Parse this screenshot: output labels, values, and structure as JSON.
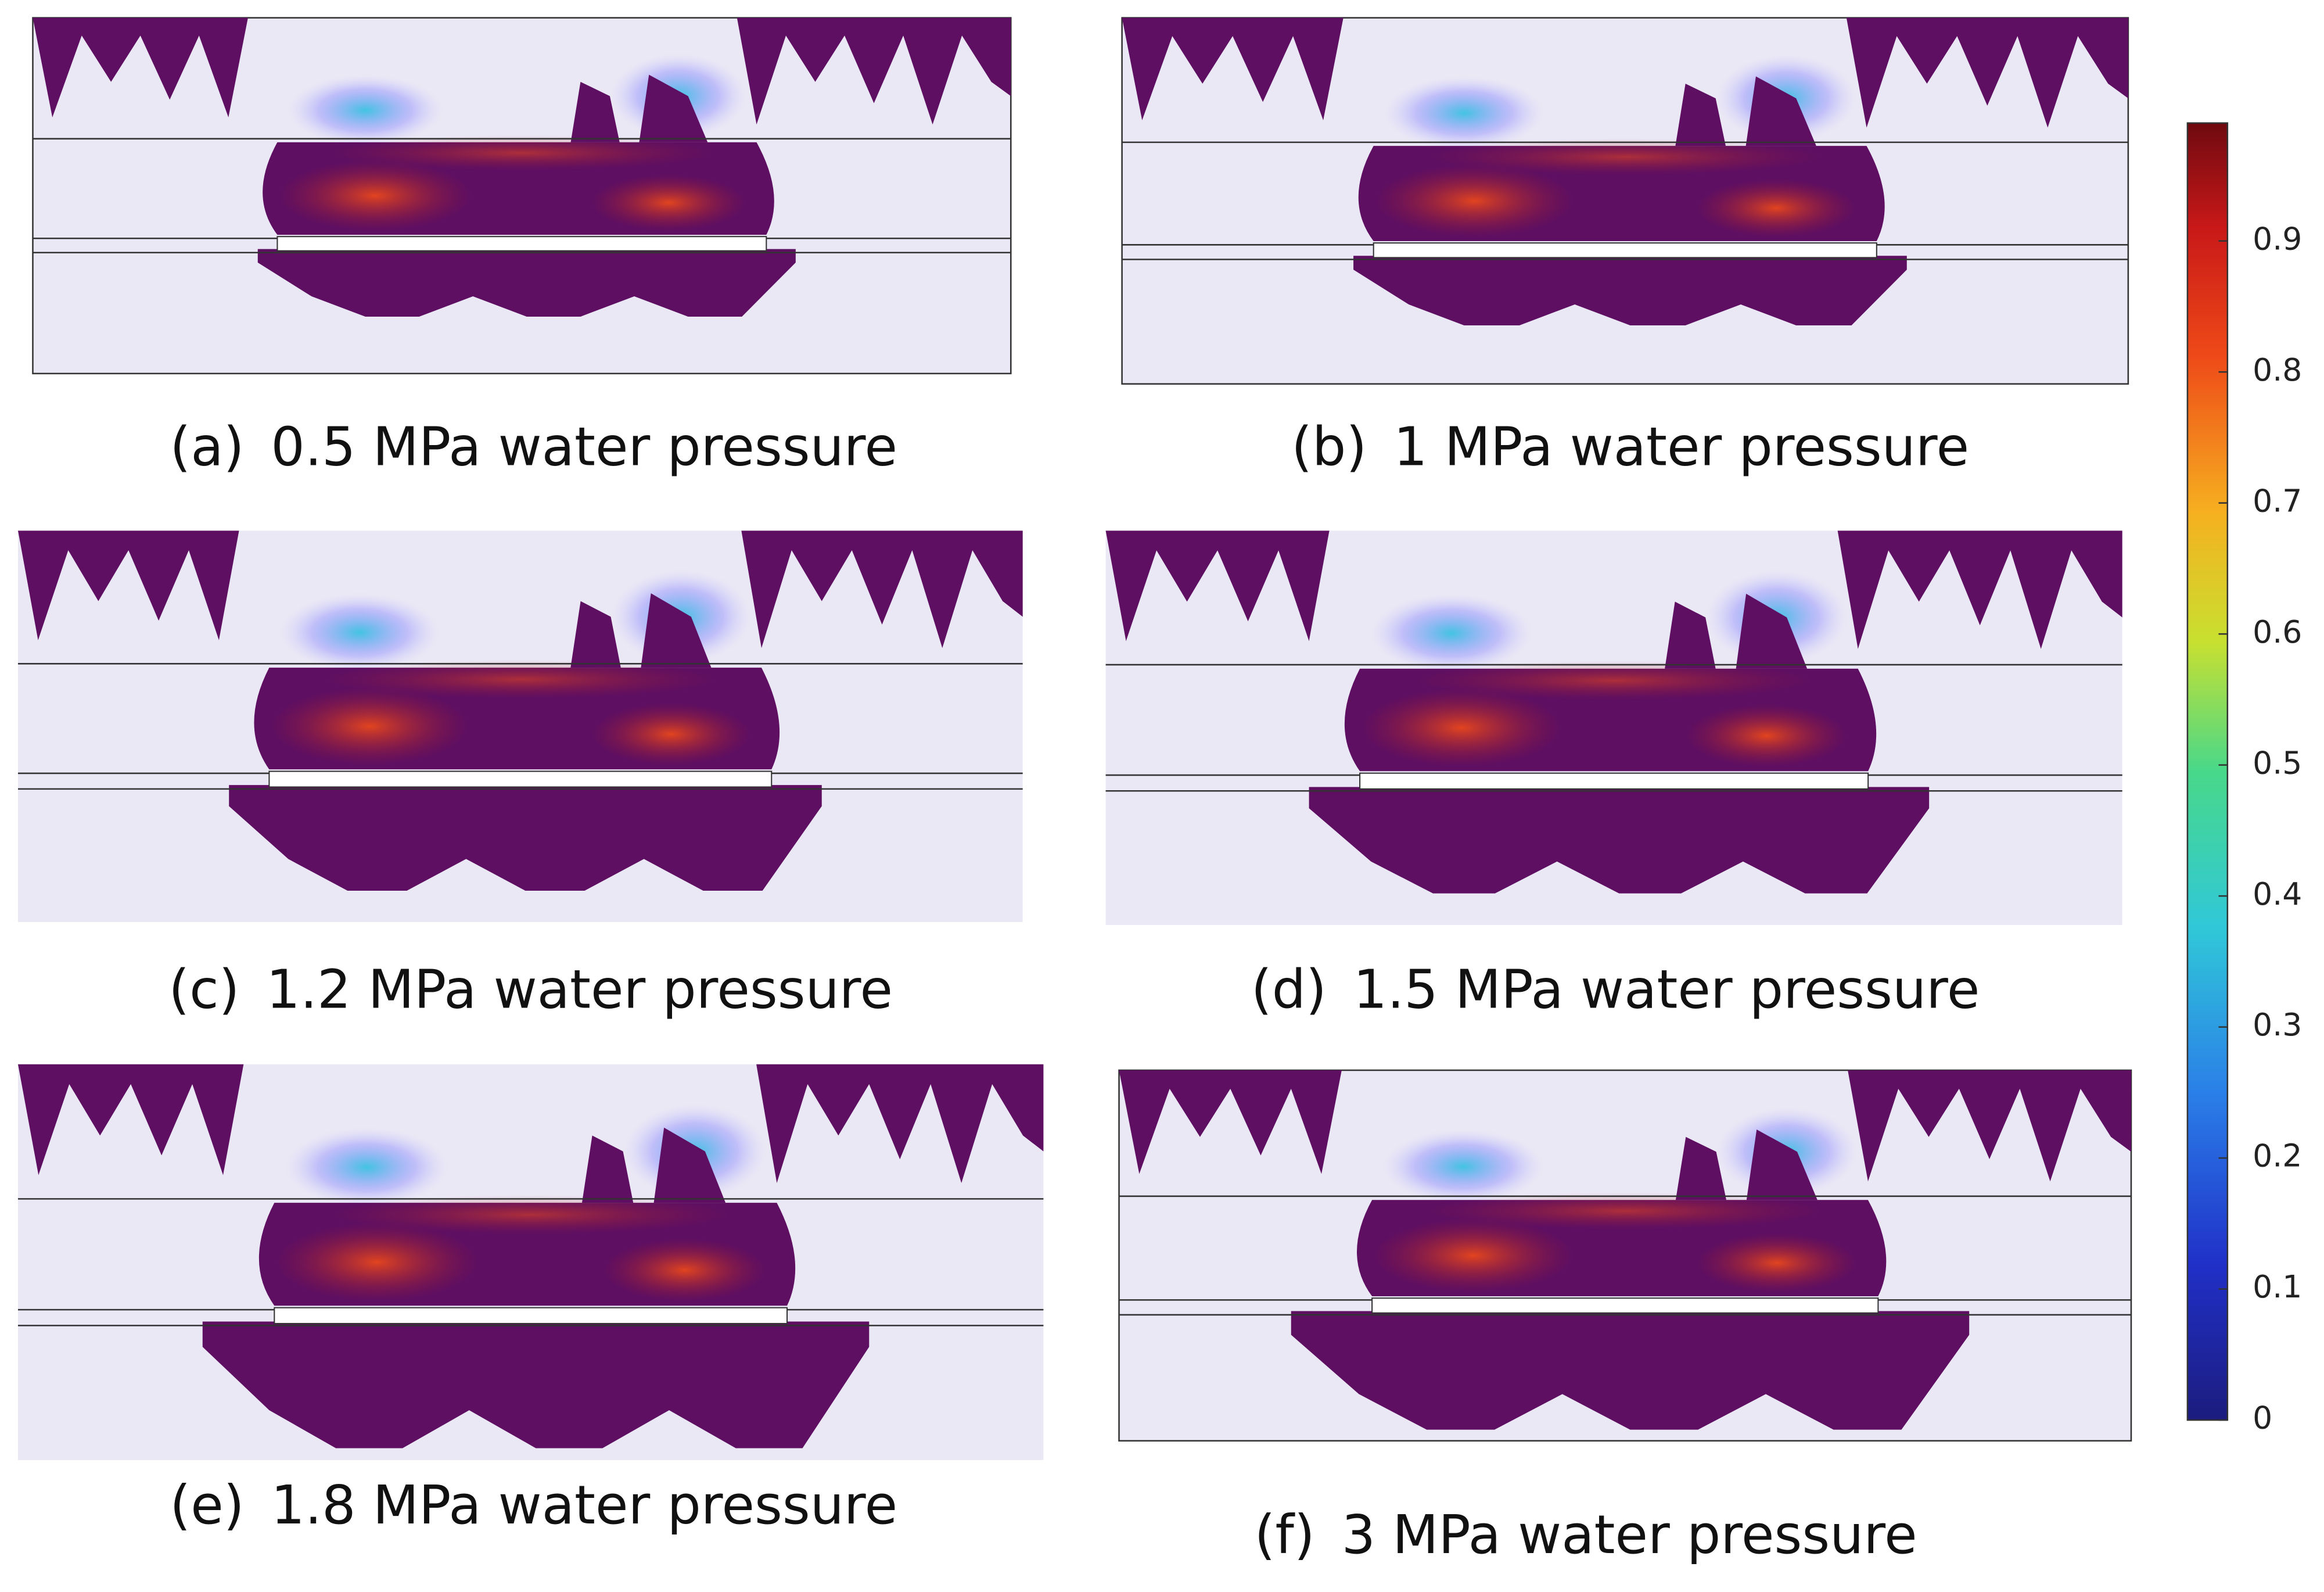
{
  "panels": [
    {
      "label": "(a)",
      "caption": "0.5 MPa water pressure"
    },
    {
      "label": "(b)",
      "caption": "1 MPa water pressure"
    },
    {
      "label": "(c)",
      "caption": "1.2 MPa water pressure"
    },
    {
      "label": "(d)",
      "caption": "1.5 MPa water pressure"
    },
    {
      "label": "(e)",
      "caption": "1.8 MPa water pressure"
    },
    {
      "label": "(f)",
      "caption": "3 MPa water pressure"
    }
  ],
  "colorbar": {
    "lim": [
      0,
      0.99
    ],
    "ticks": [
      0,
      0.1,
      0.2,
      0.3,
      0.4,
      0.5,
      0.6,
      0.7,
      0.8,
      0.9
    ]
  }
}
